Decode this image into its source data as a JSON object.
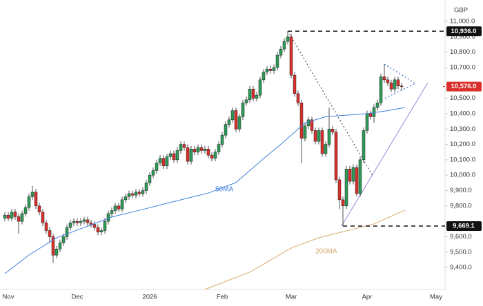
{
  "chart_data": {
    "type": "candlestick",
    "currency": "GBP",
    "categories": [
      null,
      "Nov",
      null,
      null,
      null,
      null,
      null,
      null,
      null,
      null,
      null,
      null,
      null,
      null,
      null,
      null,
      null,
      null,
      null,
      null,
      null,
      "Dec",
      null,
      null,
      null,
      null,
      null,
      null,
      null,
      null,
      null,
      null,
      null,
      null,
      null,
      null,
      null,
      null,
      null,
      null,
      null,
      null,
      "2026",
      null,
      null,
      null,
      null,
      null,
      null,
      null,
      null,
      null,
      null,
      null,
      null,
      null,
      null,
      null,
      null,
      null,
      null,
      null,
      null,
      "Feb",
      null,
      null,
      null,
      null,
      null,
      null,
      null,
      null,
      null,
      null,
      null,
      null,
      null,
      null,
      null,
      null,
      null,
      null,
      null,
      "Mar",
      null,
      null,
      null,
      null,
      null,
      null,
      null,
      null,
      null,
      null,
      null,
      null,
      null,
      null,
      null,
      null,
      null,
      null,
      null,
      null,
      null,
      "Apr",
      null,
      null,
      null,
      null,
      null,
      null,
      null,
      null,
      null,
      null,
      null,
      null,
      null,
      null,
      null,
      null,
      null,
      null,
      null,
      "May"
    ],
    "open": [
      9720,
      9740,
      9720,
      9760,
      9730,
      9700,
      9750,
      9790,
      9860,
      9890,
      9800,
      9760,
      9690,
      9640,
      9600,
      9480,
      9520,
      9560,
      9600,
      9660,
      9690,
      9700,
      9690,
      9700,
      9710,
      9690,
      9680,
      9660,
      9630,
      9640,
      9700,
      9750,
      9770,
      9800,
      9780,
      9840,
      9860,
      9880,
      9870,
      9890,
      9880,
      9900,
      9950,
      10000,
      10030,
      10080,
      10110,
      10060,
      10120,
      10140,
      10100,
      10160,
      10200,
      10180,
      10090,
      10170,
      10150,
      10180,
      10160,
      10170,
      10130,
      10110,
      10150,
      10200,
      10260,
      10330,
      10360,
      10420,
      10300,
      10380,
      10470,
      10490,
      10560,
      10500,
      10520,
      10620,
      10670,
      10690,
      10680,
      10700,
      10780,
      10820,
      10870,
      10900,
      10650,
      10530,
      10470,
      10240,
      10320,
      10360,
      10290,
      10220,
      10290,
      10140,
      10200,
      10300,
      10280,
      9970,
      9840,
      9800,
      10040,
      9960,
      10050,
      9880,
      10100,
      10290,
      10400,
      10380,
      10440,
      10470,
      10640,
      10620,
      10600,
      10560,
      10620,
      10580,
      null,
      null,
      null,
      null,
      null,
      null,
      null,
      null,
      null,
      null
    ],
    "high": [
      9760,
      9760,
      9780,
      9780,
      9750,
      9770,
      9810,
      9880,
      9930,
      9910,
      9820,
      9780,
      9710,
      9660,
      9620,
      9540,
      9580,
      9620,
      9680,
      9710,
      9720,
      9720,
      9720,
      9730,
      9730,
      9710,
      9700,
      9680,
      9660,
      9720,
      9770,
      9790,
      9820,
      9820,
      9860,
      9880,
      9900,
      9900,
      9910,
      9910,
      9920,
      9970,
      10020,
      10050,
      10100,
      10130,
      10130,
      10140,
      10160,
      10160,
      10180,
      10220,
      10220,
      10200,
      10190,
      10190,
      10200,
      10200,
      10190,
      10190,
      10150,
      10170,
      10220,
      10280,
      10350,
      10380,
      10440,
      10440,
      10400,
      10490,
      10510,
      10580,
      10580,
      10540,
      10640,
      10690,
      10710,
      10710,
      10720,
      10800,
      10840,
      10890,
      10936,
      10920,
      10670,
      10550,
      10490,
      10340,
      10380,
      10380,
      10310,
      10310,
      10310,
      10220,
      10440,
      10320,
      10300,
      9990,
      9860,
      10060,
      10060,
      10070,
      10070,
      10120,
      10310,
      10420,
      10420,
      10460,
      10490,
      10660,
      10720,
      10640,
      10620,
      10640,
      10640,
      10600,
      null,
      null,
      null,
      null,
      null,
      null,
      null,
      null,
      null,
      null
    ],
    "low": [
      9700,
      9700,
      9700,
      9710,
      9620,
      9680,
      9730,
      9770,
      9840,
      9780,
      9740,
      9670,
      9620,
      9560,
      9430,
      9460,
      9500,
      9540,
      9580,
      9640,
      9670,
      9670,
      9670,
      9680,
      9670,
      9660,
      9640,
      9610,
      9610,
      9620,
      9680,
      9730,
      9750,
      9760,
      9760,
      9820,
      9840,
      9850,
      9850,
      9860,
      9860,
      9880,
      9930,
      9980,
      10010,
      10060,
      10040,
      10040,
      10100,
      10080,
      10080,
      10140,
      10160,
      10070,
      10070,
      10130,
      10130,
      10140,
      10140,
      10110,
      10090,
      10090,
      10130,
      10180,
      10240,
      10310,
      10340,
      10280,
      10280,
      10360,
      10450,
      10470,
      10480,
      10480,
      10500,
      10600,
      10650,
      10660,
      10660,
      10680,
      10760,
      10800,
      10850,
      10630,
      10510,
      10450,
      10080,
      10220,
      10300,
      10270,
      10200,
      10200,
      10120,
      10120,
      10180,
      10260,
      9950,
      9780,
      9669.1,
      9780,
      9940,
      9940,
      9860,
      9860,
      10080,
      10270,
      10360,
      10340,
      10420,
      10450,
      10600,
      10580,
      10540,
      10540,
      10560,
      10550,
      null,
      null,
      null,
      null,
      null,
      null,
      null,
      null,
      null,
      null
    ],
    "close": [
      9740,
      9720,
      9760,
      9730,
      9700,
      9750,
      9790,
      9860,
      9890,
      9800,
      9760,
      9690,
      9640,
      9600,
      9480,
      9520,
      9560,
      9600,
      9660,
      9690,
      9700,
      9690,
      9700,
      9710,
      9690,
      9680,
      9660,
      9630,
      9640,
      9700,
      9750,
      9770,
      9800,
      9780,
      9840,
      9860,
      9880,
      9870,
      9890,
      9880,
      9900,
      9950,
      10000,
      10030,
      10080,
      10110,
      10060,
      10120,
      10140,
      10100,
      10160,
      10200,
      10180,
      10090,
      10170,
      10150,
      10180,
      10160,
      10170,
      10130,
      10110,
      10150,
      10200,
      10260,
      10330,
      10360,
      10420,
      10300,
      10380,
      10470,
      10490,
      10560,
      10500,
      10520,
      10620,
      10670,
      10690,
      10680,
      10700,
      10780,
      10820,
      10870,
      10900,
      10650,
      10530,
      10470,
      10240,
      10320,
      10360,
      10290,
      10220,
      10290,
      10140,
      10200,
      10300,
      10280,
      9970,
      9840,
      9800,
      10040,
      9960,
      10050,
      9880,
      10100,
      10290,
      10400,
      10380,
      10440,
      10470,
      10640,
      10620,
      10600,
      10560,
      10620,
      10580,
      10576,
      null,
      null,
      null,
      null,
      null,
      null,
      null,
      null,
      null,
      null
    ],
    "up_color": "#2e9b57",
    "down_color": "#d9302c",
    "ylim": [
      9257,
      11139
    ],
    "yticks": [
      {
        "value": 11000,
        "label": "11,000.0"
      },
      {
        "value": 10900,
        "label": "10,900.0"
      },
      {
        "value": 10800,
        "label": "10,800.0"
      },
      {
        "value": 10700,
        "label": "10,700.0"
      },
      {
        "value": 10500,
        "label": "10,500.0"
      },
      {
        "value": 10400,
        "label": "10,400.0"
      },
      {
        "value": 10300,
        "label": "10,300.0"
      },
      {
        "value": 10200,
        "label": "10,200.0"
      },
      {
        "value": 10100,
        "label": "10,100.0"
      },
      {
        "value": 10000,
        "label": "10,000.0"
      },
      {
        "value": 9900,
        "label": "9,900.0"
      },
      {
        "value": 9800,
        "label": "9,800.0"
      },
      {
        "value": 9600,
        "label": "9,600.0"
      },
      {
        "value": 9500,
        "label": "9,500.0"
      },
      {
        "value": 9400,
        "label": "9,400.0"
      }
    ],
    "overlays": [
      {
        "name": "50MA",
        "color": "#3f7fdc",
        "x": [
          0,
          7,
          15,
          23,
          31,
          39,
          47,
          55,
          59,
          67,
          75,
          81,
          87,
          93,
          99,
          105,
          111,
          116
        ],
        "values": [
          9360,
          9481,
          9593,
          9660,
          9728,
          9772,
          9817,
          9862,
          9884,
          9952,
          10108,
          10220,
          10340,
          10380,
          10390,
          10400,
          10420,
          10440
        ]
      },
      {
        "name": "200MA",
        "color": "#d9a86a",
        "x": [
          58,
          71,
          83,
          91,
          99,
          107,
          116
        ],
        "values": [
          9257,
          9370,
          9526,
          9593,
          9638,
          9683,
          9773
        ]
      }
    ],
    "levels": [
      {
        "value": 10936,
        "label": "10,936.0",
        "from": 82
      },
      {
        "value": 9669.1,
        "label": "9,669.1",
        "from": 98
      }
    ],
    "last_price": {
      "value": 10576,
      "label": "10,576.0"
    }
  }
}
